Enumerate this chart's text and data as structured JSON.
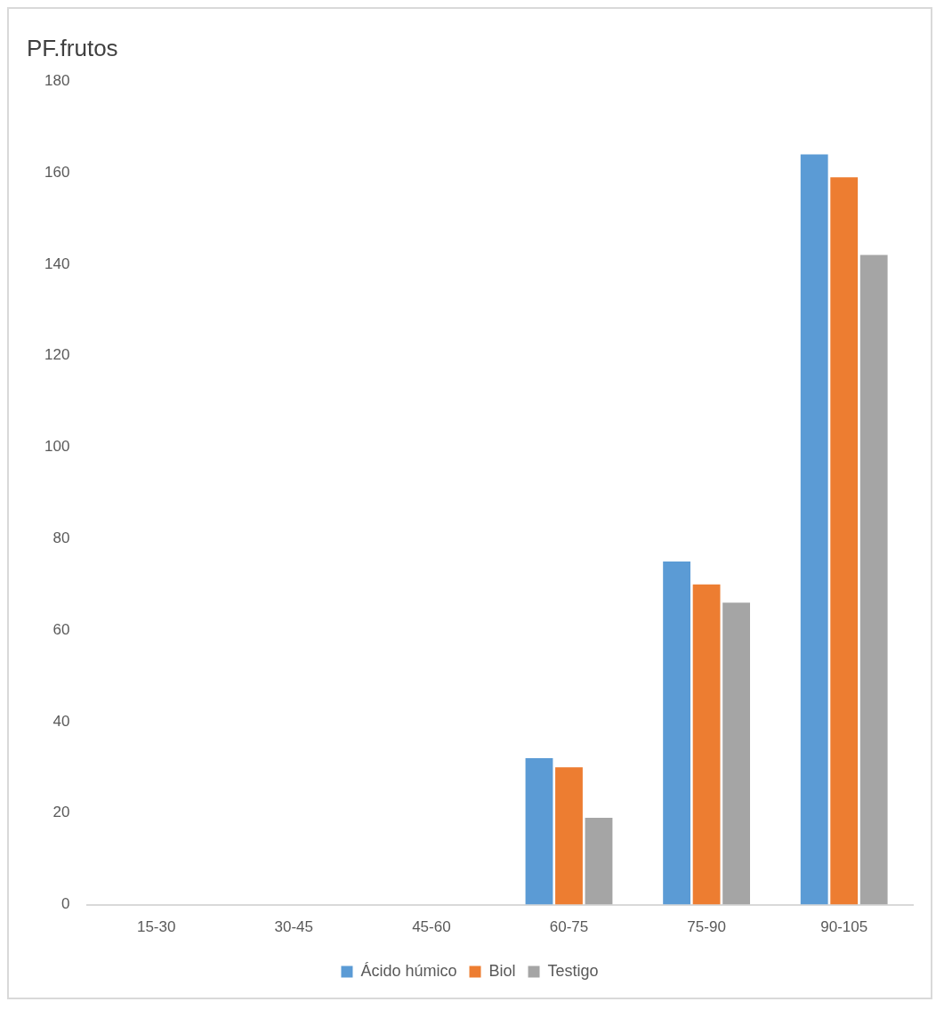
{
  "chart_data": {
    "type": "bar",
    "title": "PF.frutos",
    "categories": [
      "15-30",
      "30-45",
      "45-60",
      "60-75",
      "75-90",
      "90-105"
    ],
    "series": [
      {
        "name": "Ácido húmico",
        "color": "#5b9bd5",
        "values": [
          0,
          0,
          0,
          32,
          75,
          164
        ]
      },
      {
        "name": "Biol",
        "color": "#ed7d31",
        "values": [
          0,
          0,
          0,
          30,
          70,
          159
        ]
      },
      {
        "name": "Testigo",
        "color": "#a5a5a5",
        "values": [
          0,
          0,
          0,
          19,
          66,
          142
        ]
      }
    ],
    "ylim": [
      0,
      180
    ],
    "yticks": [
      0,
      20,
      40,
      60,
      80,
      100,
      120,
      140,
      160,
      180
    ],
    "grid": false,
    "legend": "bottom"
  }
}
